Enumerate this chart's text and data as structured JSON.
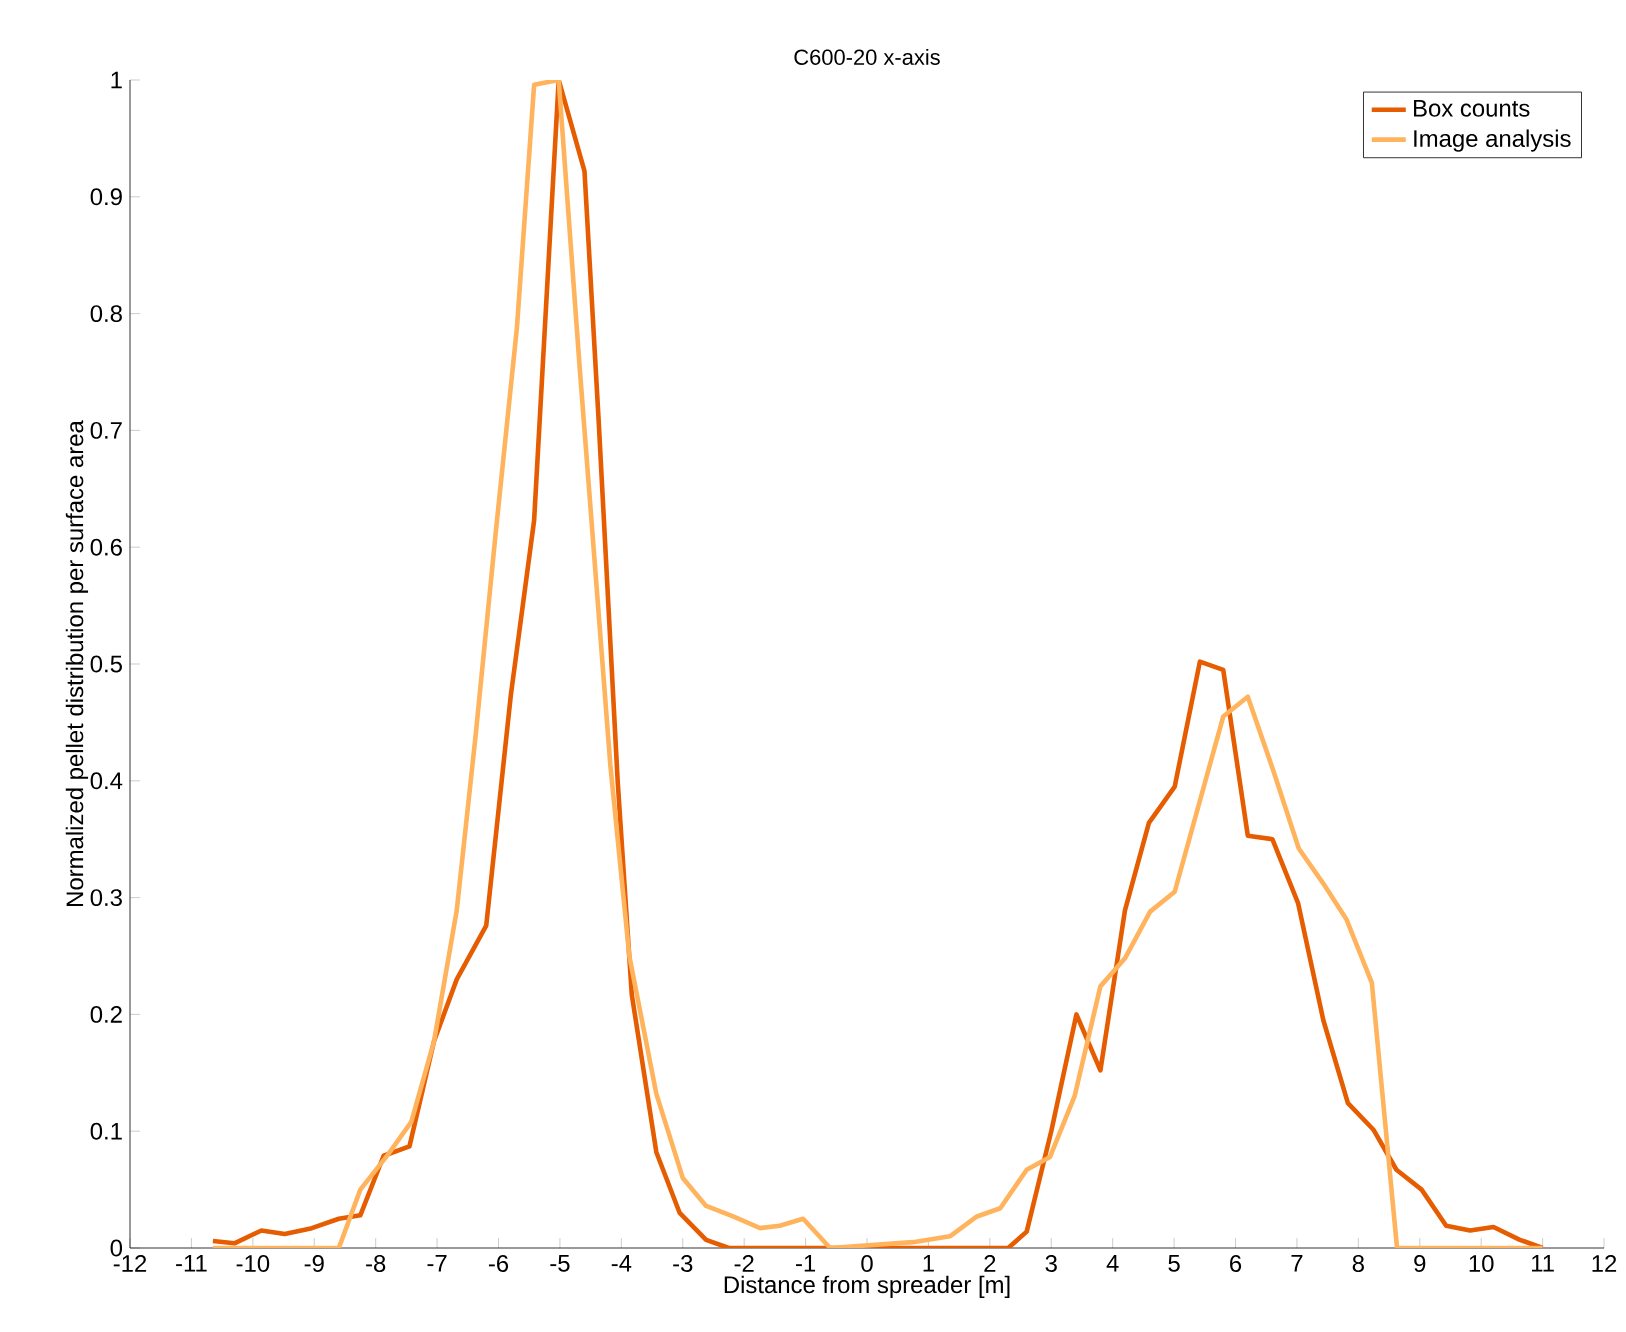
{
  "chart_data": {
    "type": "line",
    "title": "C600-20 x-axis",
    "xlabel": "Distance from spreader [m]",
    "ylabel": "Normalized pellet distribution per surface area",
    "xlim": [
      -12,
      12
    ],
    "xticks": [
      -12,
      -11,
      -10,
      -9,
      -8,
      -7,
      -6,
      -5,
      -4,
      -3,
      -2,
      -1,
      0,
      1,
      2,
      3,
      4,
      5,
      6,
      7,
      8,
      9,
      10,
      11,
      12
    ],
    "ylim": [
      0,
      1
    ],
    "yticks": [
      0,
      0.1,
      0.2,
      0.3,
      0.4,
      0.5,
      0.6,
      0.7,
      0.8,
      0.9,
      1
    ],
    "grid": false,
    "legend": "top right",
    "line_style": "solid",
    "marker": "none",
    "series": [
      {
        "name": "Box counts",
        "color": "#e65c00",
        "x": [
          -10.65,
          -10.3,
          -9.86,
          -9.48,
          -9.04,
          -8.6,
          -8.25,
          -7.87,
          -7.45,
          -7.05,
          -6.68,
          -6.2,
          -5.8,
          -5.42,
          -5.02,
          -4.6,
          -4.37,
          -4.06,
          -3.83,
          -3.43,
          -3.05,
          -2.62,
          -2.25,
          0,
          2.3,
          2.6,
          3.0,
          3.41,
          3.8,
          4.2,
          4.59,
          5.01,
          5.42,
          5.8,
          6.2,
          6.6,
          7.02,
          7.43,
          7.83,
          8.25,
          8.62,
          9.03,
          9.43,
          9.82,
          10.2,
          10.63,
          11
        ],
        "values": [
          0.006,
          0.004,
          0.015,
          0.012,
          0.017,
          0.025,
          0.028,
          0.079,
          0.087,
          0.177,
          0.23,
          0.276,
          0.473,
          0.623,
          1.0,
          0.922,
          0.709,
          0.4,
          0.217,
          0.082,
          0.03,
          0.007,
          0,
          0,
          0,
          0.014,
          0.1,
          0.2,
          0.152,
          0.289,
          0.364,
          0.395,
          0.502,
          0.495,
          0.353,
          0.35,
          0.295,
          0.195,
          0.124,
          0.101,
          0.067,
          0.05,
          0.019,
          0.015,
          0.018,
          0.007,
          0
        ]
      },
      {
        "name": "Image analysis",
        "color": "#ffb35c",
        "x": [
          -10.65,
          -8.6,
          -8.25,
          -7.8,
          -7.42,
          -7.05,
          -6.68,
          -6.37,
          -6.05,
          -5.7,
          -5.42,
          -5.02,
          -4.68,
          -4.18,
          -3.87,
          -3.43,
          -3.0,
          -2.62,
          -2.18,
          -1.74,
          -1.42,
          -1.04,
          -0.6,
          0.75,
          1.35,
          1.79,
          2.17,
          2.6,
          2.98,
          3.38,
          3.8,
          4.2,
          4.61,
          5.01,
          5.8,
          6.2,
          6.62,
          7.03,
          7.43,
          7.81,
          8.22,
          8.63,
          11
        ],
        "values": [
          0,
          0,
          0.05,
          0.08,
          0.108,
          0.177,
          0.289,
          0.44,
          0.61,
          0.788,
          0.996,
          1.0,
          0.755,
          0.414,
          0.25,
          0.132,
          0.06,
          0.036,
          0.027,
          0.017,
          0.019,
          0.025,
          0,
          0.005,
          0.01,
          0.027,
          0.034,
          0.067,
          0.078,
          0.13,
          0.224,
          0.248,
          0.288,
          0.305,
          0.455,
          0.472,
          0.408,
          0.342,
          0.312,
          0.281,
          0.227,
          0,
          0
        ]
      }
    ]
  }
}
